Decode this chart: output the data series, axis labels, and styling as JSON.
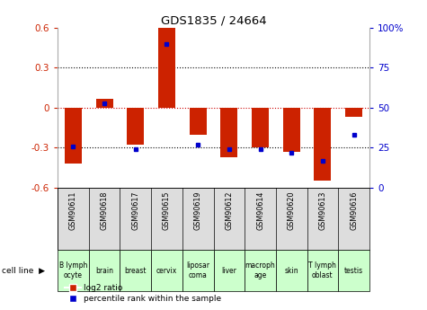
{
  "title": "GDS1835 / 24664",
  "samples": [
    "GSM90611",
    "GSM90618",
    "GSM90617",
    "GSM90615",
    "GSM90619",
    "GSM90612",
    "GSM90614",
    "GSM90620",
    "GSM90613",
    "GSM90616"
  ],
  "cell_lines": [
    "B lymph\nocyte",
    "brain",
    "breast",
    "cervix",
    "liposar\ncoma",
    "liver",
    "macroph\nage",
    "skin",
    "T lymph\noblast",
    "testis"
  ],
  "cell_line_colors": [
    "#ccffcc",
    "#ccffcc",
    "#ccffcc",
    "#ccffcc",
    "#ccffcc",
    "#ccffcc",
    "#ccffcc",
    "#ccffcc",
    "#ccffcc",
    "#ccffcc"
  ],
  "log2_ratio": [
    -0.42,
    0.07,
    -0.28,
    0.6,
    -0.2,
    -0.37,
    -0.3,
    -0.33,
    -0.55,
    -0.07
  ],
  "percentile_rank": [
    26,
    53,
    24,
    90,
    27,
    24,
    24,
    22,
    17,
    33
  ],
  "ylim": [
    -0.6,
    0.6
  ],
  "y2lim": [
    0,
    100
  ],
  "bar_color": "#cc2200",
  "dot_color": "#0000cc",
  "zero_line_color": "#cc0000",
  "grid_color": "#000000",
  "bg_color": "#ffffff",
  "yticks_left": [
    -0.6,
    -0.3,
    0.0,
    0.3,
    0.6
  ],
  "ytick_labels_left": [
    "-0.6",
    "-0.3",
    "0",
    "0.3",
    "0.6"
  ],
  "yticks_right": [
    0,
    25,
    50,
    75,
    100
  ],
  "ytick_labels_right": [
    "0",
    "25",
    "50",
    "75",
    "100%"
  ]
}
